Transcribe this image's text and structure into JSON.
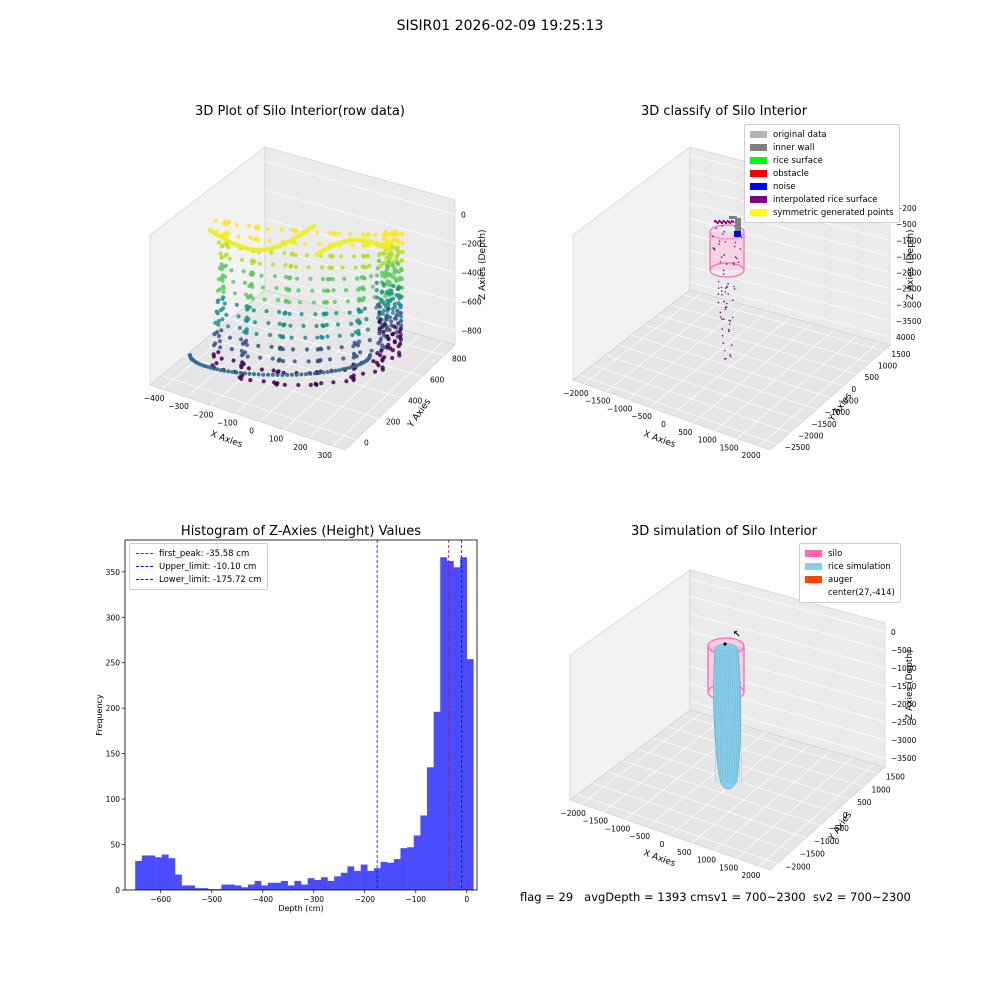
{
  "suptitle": "SISIR01 2026-02-09 19:25:13",
  "panels": {
    "raw": {
      "title": "3D Plot of Silo Interior(row data)",
      "xlabel": "X Axies",
      "ylabel": "Y Axies",
      "zlabel": "Z Axies (Depth)",
      "xticks": [
        "−400",
        "−300",
        "−200",
        "−100",
        "0",
        "100",
        "200",
        "300"
      ],
      "yticks": [
        "0",
        "200",
        "400",
        "600",
        "800"
      ],
      "zticks": [
        "0",
        "−200",
        "−400",
        "−600",
        "−800"
      ]
    },
    "classify": {
      "title": "3D classify of Silo Interior",
      "xlabel": "X Axies",
      "ylabel": "Y Axies",
      "zlabel": "Z Axies (Depth)",
      "xticks": [
        "−2000",
        "−1500",
        "−1000",
        "−500",
        "0",
        "500",
        "1000",
        "1500",
        "2000"
      ],
      "yticks": [
        "−2500",
        "−2000",
        "−1500",
        "−1000",
        "−500",
        "0",
        "500",
        "1000",
        "1500"
      ],
      "zticks": [
        "−200",
        "−500",
        "−1000",
        "−1500",
        "−2000",
        "−2500",
        "−3000",
        "−3500",
        "4000"
      ],
      "legend": [
        {
          "label": "original data",
          "color": "#b3b3b3"
        },
        {
          "label": "inner wall",
          "color": "#808080"
        },
        {
          "label": "rice surface",
          "color": "#00ff00"
        },
        {
          "label": "obstacle",
          "color": "#ff0000"
        },
        {
          "label": "noise",
          "color": "#0000ff"
        },
        {
          "label": "interpolated rice surface",
          "color": "#800080"
        },
        {
          "label": "symmetric generated points",
          "color": "#ffff00"
        }
      ]
    },
    "simulation": {
      "title": "3D simulation of Silo Interior",
      "xlabel": "X Axies",
      "ylabel": "Y Axies",
      "zlabel": "Z Axies (Depth)",
      "xticks": [
        "−2000",
        "−1500",
        "−1000",
        "−500",
        "0",
        "500",
        "1000",
        "1500",
        "2000"
      ],
      "yticks": [
        "−2000",
        "−1500",
        "−1000",
        "−500",
        "0",
        "500",
        "1000",
        "1500"
      ],
      "zticks": [
        "0",
        "−500",
        "−1000",
        "−1500",
        "−2000",
        "−2500",
        "−3000",
        "−3500"
      ],
      "legend": [
        {
          "label": "silo",
          "color": "#ff69b4"
        },
        {
          "label": "rice simulation",
          "color": "#87ceeb"
        },
        {
          "label": "auger",
          "color": "#ff4500"
        },
        {
          "label": "center(27,-414)",
          "color": ""
        }
      ]
    }
  },
  "footer": {
    "flag": "flag = 29",
    "avg": "avgDepth = 1393 cm",
    "sv1": "sv1 = 700~2300",
    "sv2": "sv2 = 700~2300"
  },
  "chart_data": [
    {
      "type": "scatter",
      "title": "3D Plot of Silo Interior(row data)",
      "xlabel": "X Axies",
      "ylabel": "Y Axies",
      "zlabel": "Z Axies (Depth)",
      "xlim": [
        -450,
        320
      ],
      "ylim": [
        -50,
        950
      ],
      "zlim": [
        -900,
        50
      ],
      "note_colormap": "viridis"
    },
    {
      "type": "scatter",
      "title": "3D classify of Silo Interior",
      "xlabel": "X Axies",
      "ylabel": "Y Axies",
      "zlabel": "Z Axies (Depth)",
      "xlim": [
        -2000,
        2000
      ],
      "ylim": [
        -2500,
        1500
      ],
      "zlim": [
        -4000,
        0
      ]
    },
    {
      "type": "bar",
      "title": "Histogram of Z-Axies (Height) Values",
      "xlabel": "Depth (cm)",
      "ylabel": "Frequency",
      "xlim": [
        -670,
        20
      ],
      "ylim": [
        0,
        385
      ],
      "xticks": [
        -600,
        -500,
        -400,
        -300,
        -200,
        -100,
        0
      ],
      "yticks": [
        0,
        50,
        100,
        150,
        200,
        250,
        300,
        350
      ],
      "bin_width": 13,
      "bin_start": -650,
      "values": [
        32,
        38,
        38,
        36,
        39,
        35,
        17,
        5,
        5,
        2,
        2,
        1,
        1,
        6,
        6,
        5,
        3,
        6,
        10,
        5,
        8,
        8,
        10,
        5,
        10,
        6,
        13,
        11,
        14,
        10,
        15,
        19,
        26,
        21,
        28,
        21,
        24,
        31,
        30,
        34,
        46,
        47,
        60,
        82,
        135,
        196,
        366,
        362,
        355,
        366,
        254
      ],
      "vlines": [
        {
          "label": "first_peak: -35.58 cm",
          "x": -35.58,
          "color": "#ff0000"
        },
        {
          "label": "Upper_limit: -10.10 cm",
          "x": -10.1,
          "color": "#0000ff"
        },
        {
          "label": "Lower_limit: -175.72 cm",
          "x": -175.72,
          "color": "#0000ff"
        }
      ],
      "bar_color": "#4b4bff"
    },
    {
      "type": "scatter",
      "title": "3D simulation of Silo Interior",
      "xlabel": "X Axies",
      "ylabel": "Y Axies",
      "zlabel": "Z Axies (Depth)",
      "xlim": [
        -2000,
        2000
      ],
      "ylim": [
        -2000,
        1500
      ],
      "zlim": [
        -3700,
        0
      ]
    }
  ]
}
